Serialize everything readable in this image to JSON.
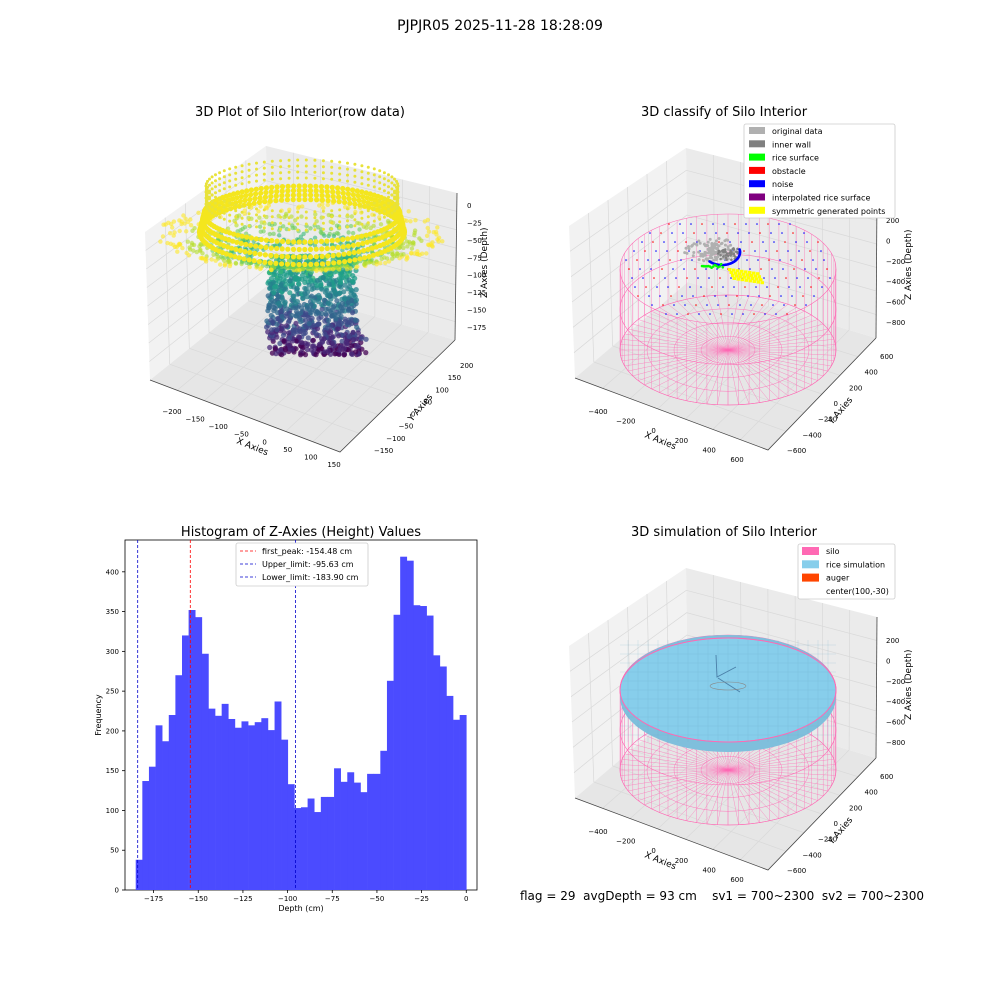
{
  "suptitle": "PJPJR05 2025-11-28 18:28:09",
  "footer": {
    "flag": "flag = 29",
    "avg_depth": "avgDepth = 93 cm",
    "sv1": "sv1 = 700~2300",
    "sv2": "sv2 = 700~2300"
  },
  "colors": {
    "bar": "#4b4bff",
    "peak_line": "#ff0000",
    "limit_line": "#0000cc",
    "silo": "#ff69b4",
    "rice_simulation": "#87ceeb",
    "auger": "#ff4500",
    "original_data": "#b0b0b0",
    "inner_wall": "#808080",
    "rice_surface": "#00ff00",
    "obstacle": "#ff0000",
    "noise": "#0000ff",
    "interpolated_rice_surface": "#800080",
    "symmetric_generated_points": "#ffff00"
  },
  "chart_data": [
    {
      "type": "scatter",
      "title": "3D Plot of Silo Interior(row data)",
      "xlabel": "X Axies",
      "ylabel": "Y Axies",
      "zlabel": "Z Axies (Depth)",
      "x_ticks": [
        "−200",
        "−150",
        "−100",
        "−50",
        "0",
        "50",
        "100",
        "150"
      ],
      "y_ticks": [
        "−150",
        "−100",
        "−50",
        "0",
        "50",
        "100",
        "150",
        "200"
      ],
      "z_ticks": [
        "0",
        "−25",
        "−50",
        "−75",
        "−100",
        "−125",
        "−150",
        "−175"
      ],
      "colormap": "viridis"
    },
    {
      "type": "scatter",
      "title": "3D classify of Silo Interior",
      "xlabel": "X Axies",
      "ylabel": "Y Axies",
      "zlabel": "Z Axies (Depth)",
      "x_ticks": [
        "−400",
        "−200",
        "0",
        "200",
        "400",
        "600"
      ],
      "y_ticks": [
        "−600",
        "−400",
        "−200",
        "0",
        "200",
        "400",
        "600"
      ],
      "z_ticks": [
        "200",
        "0",
        "−200",
        "−400",
        "−600",
        "−800"
      ],
      "legend": [
        {
          "label": "original data",
          "color": "#b0b0b0"
        },
        {
          "label": "inner wall",
          "color": "#808080"
        },
        {
          "label": "rice surface",
          "color": "#00ff00"
        },
        {
          "label": "obstacle",
          "color": "#ff0000"
        },
        {
          "label": "noise",
          "color": "#0000ff"
        },
        {
          "label": "interpolated rice surface",
          "color": "#800080"
        },
        {
          "label": "symmetric generated points",
          "color": "#ffff00"
        }
      ],
      "legend_position": "top-right"
    },
    {
      "type": "bar",
      "title": "Histogram of Z-Axies (Height) Values",
      "xlabel": "Depth (cm)",
      "ylabel": "Frequency",
      "xlim": [
        -191,
        6
      ],
      "ylim": [
        0,
        440
      ],
      "bin_start": -185,
      "bin_width": 3.7,
      "values": [
        38,
        137,
        155,
        207,
        187,
        220,
        270,
        320,
        352,
        343,
        297,
        228,
        219,
        234,
        215,
        204,
        212,
        207,
        211,
        216,
        201,
        237,
        189,
        133,
        103,
        104,
        115,
        98,
        117,
        117,
        153,
        136,
        148,
        135,
        123,
        146,
        146,
        175,
        263,
        346,
        419,
        414,
        358,
        357,
        345,
        295,
        281,
        244,
        214,
        220
      ],
      "x_ticks": [
        -175,
        -150,
        -125,
        -100,
        -75,
        -50,
        -25,
        0
      ],
      "x_tick_labels": [
        "−175",
        "−150",
        "−125",
        "−100",
        "−75",
        "−50",
        "−25",
        "0"
      ],
      "y_ticks": [
        0,
        50,
        100,
        150,
        200,
        250,
        300,
        350,
        400
      ],
      "y_tick_labels": [
        "0",
        "50",
        "100",
        "150",
        "200",
        "250",
        "300",
        "350",
        "400"
      ],
      "vlines": [
        {
          "label": "first_peak: -154.48 cm",
          "x": -154.48,
          "color": "#ff0000"
        },
        {
          "label": "Upper_limit: -95.63 cm",
          "x": -95.63,
          "color": "#0000cc"
        },
        {
          "label": "Lower_limit: -183.90 cm",
          "x": -183.9,
          "color": "#0000cc"
        }
      ],
      "legend_position": "top-center"
    },
    {
      "type": "scatter",
      "title": "3D simulation of Silo Interior",
      "xlabel": "X Axies",
      "ylabel": "Y Axies",
      "zlabel": "Z Axies (Depth)",
      "x_ticks": [
        "−400",
        "−200",
        "0",
        "200",
        "400",
        "600"
      ],
      "y_ticks": [
        "−600",
        "−400",
        "−200",
        "0",
        "200",
        "400",
        "600"
      ],
      "z_ticks": [
        "200",
        "0",
        "−200",
        "−400",
        "−600",
        "−800"
      ],
      "legend": [
        {
          "label": "silo",
          "color": "#ff69b4"
        },
        {
          "label": "rice simulation",
          "color": "#87ceeb"
        },
        {
          "label": "auger",
          "color": "#ff4500"
        },
        {
          "label": "center(100,-30)",
          "color": ""
        }
      ],
      "legend_position": "top-right"
    }
  ]
}
